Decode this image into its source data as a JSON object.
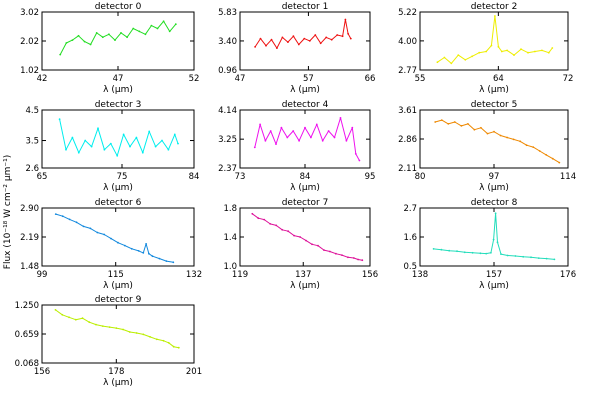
{
  "figure": {
    "ylabel": "Flux (10⁻¹⁸ W cm⁻² μm⁻¹)"
  },
  "chart_data": [
    {
      "type": "line",
      "title": "detector 0",
      "xlabel": "λ (μm)",
      "xlim": [
        42,
        52
      ],
      "ylim": [
        1.02,
        3.02
      ],
      "xticks": [
        42,
        47,
        52
      ],
      "xtick_labels": [
        "42",
        "47",
        "52"
      ],
      "yticks": [
        1.02,
        2.02,
        3.02
      ],
      "ytick_labels": [
        "1.02",
        "2.02",
        "3.02"
      ],
      "color": "#22dd22",
      "x": [
        43.2,
        43.6,
        44.0,
        44.4,
        44.8,
        45.2,
        45.6,
        46.0,
        46.4,
        46.8,
        47.2,
        47.6,
        48.0,
        48.4,
        48.8,
        49.2,
        49.6,
        50.0,
        50.4,
        50.8
      ],
      "y": [
        1.55,
        1.95,
        2.05,
        2.2,
        2.0,
        1.9,
        2.3,
        2.15,
        2.25,
        2.05,
        2.3,
        2.15,
        2.45,
        2.35,
        2.25,
        2.55,
        2.45,
        2.7,
        2.35,
        2.6
      ]
    },
    {
      "type": "line",
      "title": "detector 1",
      "xlabel": "λ (μm)",
      "xlim": [
        47,
        66
      ],
      "ylim": [
        0.96,
        5.83
      ],
      "xticks": [
        47,
        57,
        66
      ],
      "xtick_labels": [
        "47",
        "57",
        "66"
      ],
      "yticks": [
        0.96,
        3.4,
        5.83
      ],
      "ytick_labels": [
        "0.96",
        "3.40",
        "5.83"
      ],
      "color": "#ee1111",
      "x": [
        49.2,
        50.0,
        50.8,
        51.6,
        52.4,
        53.2,
        54.0,
        54.8,
        55.6,
        56.4,
        57.2,
        58.0,
        58.8,
        59.6,
        60.4,
        61.2,
        62.0,
        62.4,
        62.8,
        63.2
      ],
      "y": [
        2.9,
        3.6,
        3.0,
        3.5,
        2.8,
        3.7,
        3.3,
        3.8,
        3.1,
        3.6,
        3.4,
        3.9,
        3.2,
        3.7,
        3.5,
        3.9,
        3.8,
        5.2,
        4.0,
        3.6
      ]
    },
    {
      "type": "line",
      "title": "detector 2",
      "xlabel": "λ (μm)",
      "xlim": [
        55,
        72
      ],
      "ylim": [
        2.77,
        5.22
      ],
      "xticks": [
        55,
        64,
        72
      ],
      "xtick_labels": [
        "55",
        "64",
        "72"
      ],
      "yticks": [
        2.77,
        4.0,
        5.22
      ],
      "ytick_labels": [
        "2.77",
        "4.00",
        "5.22"
      ],
      "color": "#eeee00",
      "x": [
        57.0,
        57.8,
        58.6,
        59.4,
        60.2,
        61.0,
        61.8,
        62.6,
        63.2,
        63.6,
        64.0,
        64.4,
        65.0,
        65.8,
        66.6,
        67.4,
        68.2,
        69.0,
        69.8,
        70.2
      ],
      "y": [
        3.1,
        3.3,
        3.05,
        3.4,
        3.2,
        3.35,
        3.5,
        3.55,
        3.8,
        5.05,
        3.75,
        3.55,
        3.6,
        3.4,
        3.65,
        3.5,
        3.55,
        3.6,
        3.5,
        3.7
      ]
    },
    {
      "type": "line",
      "title": "detector 3",
      "xlabel": "λ (μm)",
      "xlim": [
        65,
        84
      ],
      "ylim": [
        2.6,
        4.5
      ],
      "xticks": [
        65,
        75,
        84
      ],
      "xtick_labels": [
        "65",
        "75",
        "84"
      ],
      "yticks": [
        2.6,
        3.5,
        4.5
      ],
      "ytick_labels": [
        "2.6",
        "3.5",
        "4.5"
      ],
      "color": "#00eeee",
      "x": [
        67.2,
        68.0,
        68.8,
        69.6,
        70.4,
        71.2,
        72.0,
        72.8,
        73.6,
        74.4,
        75.2,
        76.0,
        76.8,
        77.6,
        78.4,
        79.2,
        80.0,
        80.8,
        81.6,
        82.0
      ],
      "y": [
        4.2,
        3.2,
        3.6,
        3.1,
        3.5,
        3.3,
        3.9,
        3.2,
        3.4,
        3.0,
        3.7,
        3.3,
        3.6,
        3.1,
        3.8,
        3.3,
        3.5,
        3.2,
        3.7,
        3.4
      ]
    },
    {
      "type": "line",
      "title": "detector 4",
      "xlabel": "λ (μm)",
      "xlim": [
        73,
        95
      ],
      "ylim": [
        2.37,
        4.14
      ],
      "xticks": [
        73,
        84,
        95
      ],
      "xtick_labels": [
        "73",
        "84",
        "95"
      ],
      "yticks": [
        2.37,
        3.25,
        4.14
      ],
      "ytick_labels": [
        "2.37",
        "3.25",
        "4.14"
      ],
      "color": "#ee11ee",
      "x": [
        75.5,
        76.4,
        77.3,
        78.2,
        79.1,
        80.0,
        81.0,
        82.0,
        83.0,
        84.0,
        85.0,
        86.0,
        87.0,
        88.0,
        89.0,
        90.0,
        91.0,
        92.0,
        92.6,
        93.2
      ],
      "y": [
        3.0,
        3.7,
        3.2,
        3.5,
        3.1,
        3.6,
        3.3,
        3.5,
        3.2,
        3.6,
        3.3,
        3.7,
        3.2,
        3.5,
        3.3,
        3.9,
        3.2,
        3.6,
        2.8,
        2.6
      ]
    },
    {
      "type": "line",
      "title": "detector 5",
      "xlabel": "λ (μm)",
      "xlim": [
        80,
        114
      ],
      "ylim": [
        2.11,
        3.61
      ],
      "xticks": [
        80,
        97,
        114
      ],
      "xtick_labels": [
        "80",
        "97",
        "114"
      ],
      "yticks": [
        2.11,
        2.86,
        3.61
      ],
      "ytick_labels": [
        "2.11",
        "2.86",
        "3.61"
      ],
      "color": "#ee8800",
      "x": [
        83.5,
        85.0,
        86.5,
        88.0,
        89.5,
        91.0,
        92.5,
        94.0,
        95.5,
        97.0,
        98.5,
        100.0,
        101.5,
        103.0,
        104.5,
        106.0,
        107.5,
        109.0,
        110.5,
        112.0
      ],
      "y": [
        3.3,
        3.35,
        3.25,
        3.3,
        3.2,
        3.25,
        3.1,
        3.15,
        3.0,
        3.05,
        2.95,
        2.9,
        2.85,
        2.8,
        2.7,
        2.65,
        2.55,
        2.45,
        2.35,
        2.25
      ]
    },
    {
      "type": "line",
      "title": "detector 6",
      "xlabel": "λ (μm)",
      "xlim": [
        99,
        132
      ],
      "ylim": [
        1.48,
        2.9
      ],
      "xticks": [
        99,
        115,
        132
      ],
      "xtick_labels": [
        "99",
        "115",
        "132"
      ],
      "yticks": [
        1.48,
        2.19,
        2.9
      ],
      "ytick_labels": [
        "1.48",
        "2.19",
        "2.90"
      ],
      "color": "#1188dd",
      "x": [
        102.0,
        103.5,
        105.0,
        106.5,
        108.0,
        109.5,
        111.0,
        112.5,
        114.0,
        115.5,
        117.0,
        118.5,
        120.0,
        121.0,
        121.6,
        122.2,
        123.0,
        124.5,
        126.0,
        127.5
      ],
      "y": [
        2.75,
        2.7,
        2.62,
        2.55,
        2.45,
        2.4,
        2.3,
        2.25,
        2.15,
        2.05,
        1.98,
        1.9,
        1.85,
        1.8,
        2.02,
        1.78,
        1.72,
        1.66,
        1.6,
        1.57
      ]
    },
    {
      "type": "line",
      "title": "detector 7",
      "xlabel": "λ (μm)",
      "xlim": [
        119,
        156
      ],
      "ylim": [
        1.0,
        1.8
      ],
      "xticks": [
        119,
        137,
        156
      ],
      "xtick_labels": [
        "119",
        "137",
        "156"
      ],
      "yticks": [
        1.0,
        1.4,
        1.8
      ],
      "ytick_labels": [
        "1.0",
        "1.4",
        "1.8"
      ],
      "color": "#dd1199",
      "x": [
        122.5,
        124.2,
        125.9,
        127.6,
        129.3,
        131.0,
        132.7,
        134.4,
        136.1,
        137.8,
        139.5,
        141.2,
        142.9,
        144.6,
        146.3,
        148.0,
        149.7,
        151.4,
        152.6,
        153.8
      ],
      "y": [
        1.72,
        1.66,
        1.64,
        1.58,
        1.56,
        1.5,
        1.48,
        1.42,
        1.4,
        1.35,
        1.3,
        1.28,
        1.22,
        1.2,
        1.17,
        1.15,
        1.12,
        1.11,
        1.09,
        1.08
      ]
    },
    {
      "type": "line",
      "title": "detector 8",
      "xlabel": "λ (μm)",
      "xlim": [
        138,
        176
      ],
      "ylim": [
        0.5,
        2.7
      ],
      "xticks": [
        138,
        157,
        176
      ],
      "xtick_labels": [
        "138",
        "157",
        "176"
      ],
      "yticks": [
        0.5,
        1.6,
        2.7
      ],
      "ytick_labels": [
        "0.5",
        "1.6",
        "2.7"
      ],
      "color": "#22ddbb",
      "x": [
        141.5,
        143.5,
        145.5,
        147.5,
        149.5,
        151.5,
        153.5,
        155.0,
        156.2,
        156.9,
        157.4,
        157.9,
        158.8,
        160.5,
        162.5,
        164.5,
        166.5,
        168.5,
        170.5,
        172.5
      ],
      "y": [
        1.15,
        1.12,
        1.08,
        1.06,
        1.02,
        1.0,
        0.98,
        0.97,
        1.0,
        1.5,
        2.5,
        1.4,
        0.95,
        0.9,
        0.88,
        0.85,
        0.83,
        0.8,
        0.78,
        0.75
      ]
    },
    {
      "type": "line",
      "title": "detector 9",
      "xlabel": "λ (μm)",
      "xlim": [
        156,
        201
      ],
      "ylim": [
        0.068,
        1.25
      ],
      "xticks": [
        156,
        178,
        201
      ],
      "xtick_labels": [
        "156",
        "178",
        "201"
      ],
      "yticks": [
        0.068,
        0.659,
        1.25
      ],
      "ytick_labels": [
        "0.068",
        "0.659",
        "1.250"
      ],
      "color": "#bbee00",
      "x": [
        160.0,
        162.0,
        164.0,
        166.0,
        168.0,
        170.0,
        172.0,
        174.0,
        176.0,
        178.0,
        180.0,
        182.0,
        184.0,
        186.0,
        188.0,
        190.0,
        192.0,
        193.5,
        195.0,
        196.5
      ],
      "y": [
        1.15,
        1.05,
        1.0,
        0.95,
        0.98,
        0.9,
        0.85,
        0.82,
        0.8,
        0.78,
        0.75,
        0.7,
        0.68,
        0.65,
        0.6,
        0.55,
        0.52,
        0.48,
        0.4,
        0.38
      ]
    }
  ]
}
